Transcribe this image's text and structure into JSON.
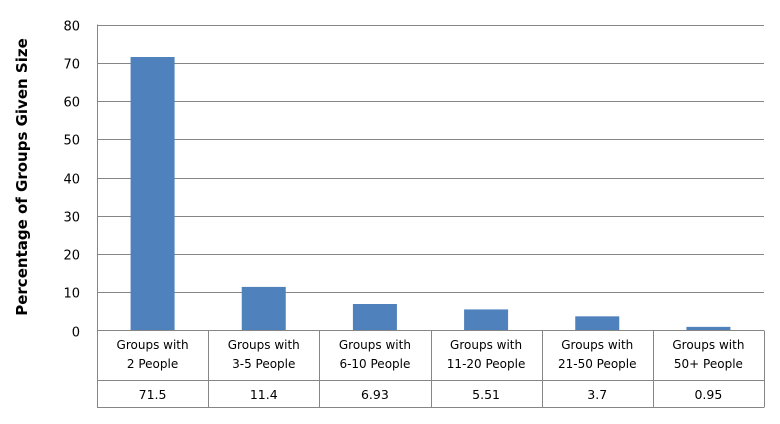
{
  "chart_data": {
    "type": "bar",
    "categories": [
      [
        "Groups with",
        "2 People"
      ],
      [
        "Groups with",
        "3-5 People"
      ],
      [
        "Groups with",
        "6-10 People"
      ],
      [
        "Groups with",
        "11-20 People"
      ],
      [
        "Groups with",
        "21-50 People"
      ],
      [
        "Groups with",
        "50+ People"
      ]
    ],
    "values": [
      71.5,
      11.4,
      6.93,
      5.51,
      3.7,
      0.95
    ],
    "value_labels": [
      "71.5",
      "11.4",
      "6.93",
      "5.51",
      "3.7",
      "0.95"
    ],
    "ylabel": "Percentage of Groups Given Size",
    "ylim": [
      0,
      80
    ],
    "yticks": [
      "0",
      "10",
      "20",
      "30",
      "40",
      "50",
      "60",
      "70",
      "80"
    ],
    "grid": true,
    "data_table": true,
    "bar_color": "#4f81bd",
    "grid_color": "#868686"
  }
}
